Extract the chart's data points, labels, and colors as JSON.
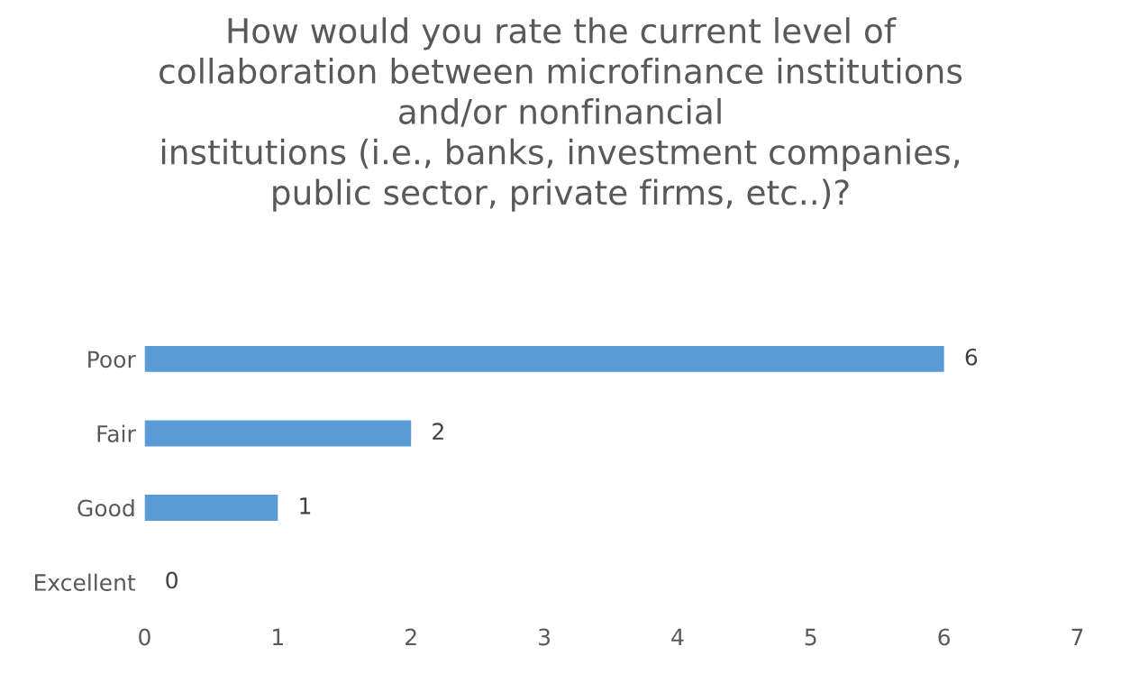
{
  "chart_data": {
    "type": "bar",
    "orientation": "horizontal",
    "title": "How would you rate the current level of\ncollaboration between microfinance institutions\nand/or nonfinancial\ninstitutions (i.e., banks, investment companies,\npublic sector, private firms, etc..)?",
    "categories": [
      "Poor",
      "Fair",
      "Good",
      "Excellent"
    ],
    "values": [
      6,
      2,
      1,
      0
    ],
    "color": "#5b9bd5",
    "xlim": [
      0,
      7
    ],
    "xticks": [
      0,
      1,
      2,
      3,
      4,
      5,
      6,
      7
    ],
    "data_labels": true,
    "grid": false,
    "legend": false
  }
}
